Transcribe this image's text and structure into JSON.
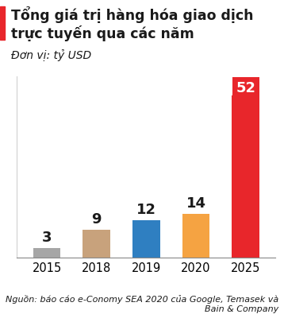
{
  "chart_data": {
    "type": "bar",
    "title": "Tổng giá trị hàng hóa giao dịch trực tuyến qua các năm",
    "subtitle": "Đơn vị: tỷ USD",
    "annotations": [
      "Nguồn: báo cáo e-Conomy SEA 2020 của Google, Temasek và Bain & Company"
    ],
    "categories": [
      "2015",
      "2018",
      "2019",
      "2020",
      "2025"
    ],
    "values": [
      3,
      9,
      12,
      14,
      52
    ],
    "colors": [
      "#a6a6a6",
      "#c8a27c",
      "#2f7fc1",
      "#f5a342",
      "#e8262b"
    ],
    "ylim": [
      0,
      58
    ],
    "yticks": [],
    "grid": false,
    "data_labels": true,
    "tick_labels": "x"
  }
}
